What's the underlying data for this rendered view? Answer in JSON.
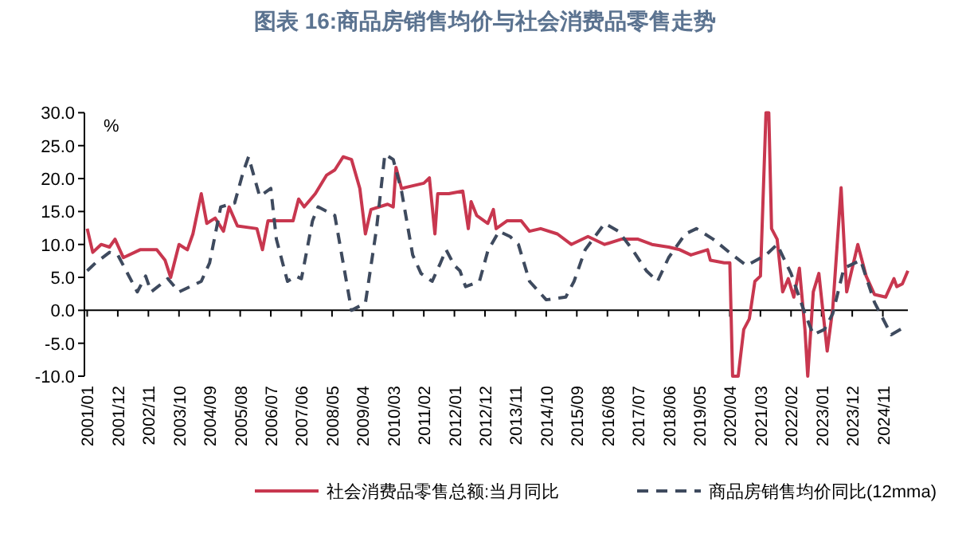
{
  "chart_data": {
    "type": "line",
    "title": "图表 16:商品房销售均价与社会消费品零售走势",
    "ylabel": "%",
    "xlim": [
      "2000-12",
      "2025-08"
    ],
    "xticks": [
      {
        "value": "2001-01",
        "label": "2001/01"
      },
      {
        "value": "2001-12",
        "label": "2001/12"
      },
      {
        "value": "2002-11",
        "label": "2002/11"
      },
      {
        "value": "2003-10",
        "label": "2003/10"
      },
      {
        "value": "2004-09",
        "label": "2004/09"
      },
      {
        "value": "2005-08",
        "label": "2005/08"
      },
      {
        "value": "2006-07",
        "label": "2006/07"
      },
      {
        "value": "2007-06",
        "label": "2007/06"
      },
      {
        "value": "2008-05",
        "label": "2008/05"
      },
      {
        "value": "2009-04",
        "label": "2009/04"
      },
      {
        "value": "2010-03",
        "label": "2010/03"
      },
      {
        "value": "2011-02",
        "label": "2011/02"
      },
      {
        "value": "2012-01",
        "label": "2012/01"
      },
      {
        "value": "2012-12",
        "label": "2012/12"
      },
      {
        "value": "2013-11",
        "label": "2013/11"
      },
      {
        "value": "2014-10",
        "label": "2014/10"
      },
      {
        "value": "2015-09",
        "label": "2015/09"
      },
      {
        "value": "2016-08",
        "label": "2016/08"
      },
      {
        "value": "2017-07",
        "label": "2017/07"
      },
      {
        "value": "2018-06",
        "label": "2018/06"
      },
      {
        "value": "2019-05",
        "label": "2019/05"
      },
      {
        "value": "2020-04",
        "label": "2020/04"
      },
      {
        "value": "2021-03",
        "label": "2021/03"
      },
      {
        "value": "2022-02",
        "label": "2022/02"
      },
      {
        "value": "2023-01",
        "label": "2023/01"
      },
      {
        "value": "2023-12",
        "label": "2023/12"
      },
      {
        "value": "2024-11",
        "label": "2024/11"
      }
    ],
    "ylim": [
      -10,
      30
    ],
    "yticks": [
      {
        "value": 30,
        "label": "30.0"
      },
      {
        "value": 25,
        "label": "25.0"
      },
      {
        "value": 20,
        "label": "20.0"
      },
      {
        "value": 15,
        "label": "15.0"
      },
      {
        "value": 10,
        "label": "10.0"
      },
      {
        "value": 5,
        "label": "5.0"
      },
      {
        "value": 0,
        "label": "0.0"
      },
      {
        "value": -5,
        "label": "-5.0"
      },
      {
        "value": -10,
        "label": "-10.0"
      }
    ],
    "legend": "bottom",
    "marker": "none",
    "series": [
      {
        "name": "社会消费品零售总额:当月同比",
        "color": "#c8374f",
        "line_style": "solid",
        "x": [
          "2001-01",
          "2001-03",
          "2001-06",
          "2001-09",
          "2001-11",
          "2002-02",
          "2002-08",
          "2003-02",
          "2003-05",
          "2003-07",
          "2003-10",
          "2004-01",
          "2004-03",
          "2004-06",
          "2004-08",
          "2004-11",
          "2005-02",
          "2005-04",
          "2005-07",
          "2006-02",
          "2006-04",
          "2006-06",
          "2006-10",
          "2007-03",
          "2007-05",
          "2007-07",
          "2007-11",
          "2008-03",
          "2008-06",
          "2008-09",
          "2008-12",
          "2009-03",
          "2009-05",
          "2009-07",
          "2010-01",
          "2010-03",
          "2010-04",
          "2010-06",
          "2011-02",
          "2011-04",
          "2011-06",
          "2011-07",
          "2011-11",
          "2012-04",
          "2012-06",
          "2012-07",
          "2012-09",
          "2013-01",
          "2013-03",
          "2013-04",
          "2013-08",
          "2014-01",
          "2014-04",
          "2014-08",
          "2015-02",
          "2015-07",
          "2016-01",
          "2016-07",
          "2017-01",
          "2017-07",
          "2017-12",
          "2018-06",
          "2018-10",
          "2019-02",
          "2019-08",
          "2019-09",
          "2020-02",
          "2020-04",
          "2020-05",
          "2020-07",
          "2020-09",
          "2020-11",
          "2021-01",
          "2021-03",
          "2021-05",
          "2021-06",
          "2021-07",
          "2021-09",
          "2021-11",
          "2022-01",
          "2022-03",
          "2022-05",
          "2022-07",
          "2022-08",
          "2022-10",
          "2022-12",
          "2023-03",
          "2023-05",
          "2023-08",
          "2023-10",
          "2024-02",
          "2024-05",
          "2024-08",
          "2024-12",
          "2025-03",
          "2025-04",
          "2025-06",
          "2025-08"
        ],
        "values": [
          12.4,
          8.8,
          10.0,
          9.6,
          10.8,
          8.0,
          9.2,
          9.2,
          7.6,
          5.0,
          10.0,
          9.2,
          11.6,
          17.7,
          13.2,
          14.0,
          12.0,
          15.7,
          12.8,
          12.4,
          9.2,
          13.6,
          13.6,
          13.6,
          16.9,
          15.7,
          17.7,
          20.5,
          21.3,
          23.3,
          22.9,
          18.5,
          11.6,
          15.3,
          16.1,
          15.7,
          21.7,
          18.5,
          19.3,
          20.1,
          11.6,
          17.7,
          17.7,
          18.1,
          12.4,
          16.5,
          14.4,
          13.2,
          15.3,
          12.4,
          13.6,
          13.6,
          12.0,
          12.4,
          11.6,
          10.0,
          11.2,
          10.0,
          10.8,
          10.8,
          10.0,
          9.6,
          9.2,
          8.4,
          9.2,
          7.6,
          7.2,
          7.2,
          -10,
          -10,
          -2.9,
          -1.3,
          4.4,
          5.2,
          30,
          30,
          12.4,
          10.8,
          2.8,
          4.8,
          2.0,
          6.4,
          -2.9,
          -10,
          2.8,
          5.6,
          -6.2,
          0.3,
          18.6,
          2.8,
          10.0,
          5.2,
          2.4,
          2.0,
          4.8,
          3.6,
          4.0,
          6.0
        ]
      },
      {
        "name": "商品房销售均价同比(12mma)",
        "color": "#3e4a5e",
        "line_style": "dashed",
        "x": [
          "2001-01",
          "2001-04",
          "2001-09",
          "2001-12",
          "2002-07",
          "2002-10",
          "2002-12",
          "2003-06",
          "2003-10",
          "2004-06",
          "2004-09",
          "2005-01",
          "2005-06",
          "2005-09",
          "2005-11",
          "2006-03",
          "2006-07",
          "2006-09",
          "2007-01",
          "2007-04",
          "2007-06",
          "2007-10",
          "2007-12",
          "2008-06",
          "2008-12",
          "2009-05",
          "2009-09",
          "2009-12",
          "2010-03",
          "2010-06",
          "2010-10",
          "2011-01",
          "2011-05",
          "2011-08",
          "2011-10",
          "2012-01",
          "2012-03",
          "2012-05",
          "2012-10",
          "2013-01",
          "2013-05",
          "2013-09",
          "2013-12",
          "2014-04",
          "2014-10",
          "2015-05",
          "2015-08",
          "2015-12",
          "2016-07",
          "2016-12",
          "2017-05",
          "2017-10",
          "2018-02",
          "2018-06",
          "2018-12",
          "2019-04",
          "2019-10",
          "2020-05",
          "2020-10",
          "2021-05",
          "2021-09",
          "2022-02",
          "2022-07",
          "2022-10",
          "2023-02",
          "2023-05",
          "2023-09",
          "2024-03",
          "2024-08",
          "2025-02",
          "2025-07"
        ],
        "values": [
          6.0,
          7.2,
          8.8,
          8.4,
          2.8,
          5.2,
          2.8,
          4.8,
          2.8,
          4.4,
          7.2,
          15.7,
          16.3,
          20.9,
          23.3,
          17.3,
          18.5,
          10.8,
          4.4,
          5.2,
          4.8,
          13.6,
          15.7,
          14.4,
          0.0,
          1.1,
          12.4,
          23.7,
          22.9,
          18.1,
          8.4,
          5.6,
          4.4,
          7.2,
          9.2,
          6.8,
          6.0,
          3.6,
          4.4,
          9.0,
          12.0,
          11.2,
          10.0,
          4.4,
          1.6,
          2.0,
          4.4,
          9.2,
          13.2,
          12.0,
          9.2,
          6.0,
          4.4,
          8.0,
          11.6,
          12.4,
          10.8,
          8.4,
          6.8,
          8.4,
          10.0,
          5.6,
          -0.5,
          -3.7,
          -2.9,
          -0.5,
          6.4,
          7.6,
          1.2,
          -3.7,
          -2.5
        ]
      }
    ]
  }
}
